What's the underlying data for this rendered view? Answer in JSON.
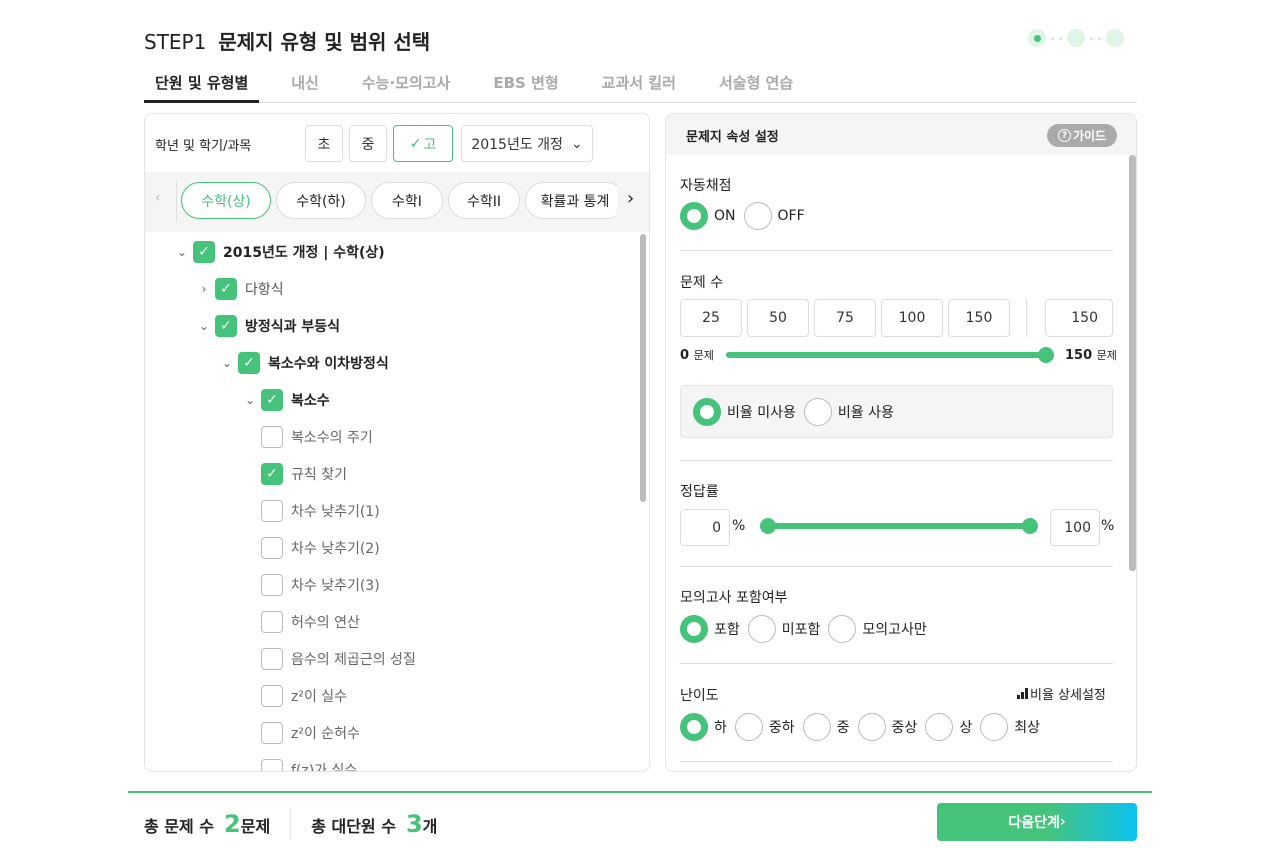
{
  "header": {
    "step": "STEP1",
    "title": "문제지 유형 및 범위 선택"
  },
  "tabs": [
    {
      "label": "단원 및 유형별",
      "active": true
    },
    {
      "label": "내신"
    },
    {
      "label": "수능·모의고사"
    },
    {
      "label": "EBS 변형"
    },
    {
      "label": "교과서 킬러"
    },
    {
      "label": "서술형 연습"
    }
  ],
  "left": {
    "grade_label": "학년 및 학기/과목",
    "grades": [
      {
        "label": "초"
      },
      {
        "label": "중"
      },
      {
        "label": "고",
        "selected": true
      }
    ],
    "curriculum": "2015년도 개정",
    "subjects": [
      {
        "label": "수학(상)",
        "active": true
      },
      {
        "label": "수학(하)"
      },
      {
        "label": "수학I"
      },
      {
        "label": "수학II"
      },
      {
        "label": "확률과 통계"
      }
    ],
    "tree": [
      {
        "label": "2015년도 개정 | 수학(상)",
        "level": 0,
        "checked": true,
        "expanded": true,
        "bold": true
      },
      {
        "label": "다항식",
        "level": 1,
        "checked": true,
        "expanded": false
      },
      {
        "label": "방정식과 부등식",
        "level": 1,
        "checked": true,
        "expanded": true,
        "bold": true
      },
      {
        "label": "복소수와 이차방정식",
        "level": 2,
        "checked": true,
        "expanded": true,
        "bold": true
      },
      {
        "label": "복소수",
        "level": 3,
        "checked": true,
        "expanded": true,
        "bold": true
      },
      {
        "label": "복소수의 주기",
        "level": 4,
        "checked": false
      },
      {
        "label": "규칙 찾기",
        "level": 4,
        "checked": true
      },
      {
        "label": "차수 낮추기(1)",
        "level": 4,
        "checked": false
      },
      {
        "label": "차수 낮추기(2)",
        "level": 4,
        "checked": false
      },
      {
        "label": "차수 낮추기(3)",
        "level": 4,
        "checked": false
      },
      {
        "label": "허수의 연산",
        "level": 4,
        "checked": false
      },
      {
        "label": "음수의 제곱근의 성질",
        "level": 4,
        "checked": false
      },
      {
        "label": "z²이 실수",
        "level": 4,
        "checked": false
      },
      {
        "label": "z²이 순허수",
        "level": 4,
        "checked": false
      },
      {
        "label": "f(z)가 실수",
        "level": 4,
        "checked": false
      }
    ]
  },
  "right": {
    "title": "문제지 속성 설정",
    "guide": "가이드",
    "auto_grade": {
      "label": "자동채점",
      "options": [
        "ON",
        "OFF"
      ],
      "selected": 0
    },
    "count": {
      "label": "문제 수",
      "presets": [
        "25",
        "50",
        "75",
        "100",
        "150"
      ],
      "value": "150",
      "min": "0",
      "max": "150",
      "unit": "문제",
      "slider_percent": 100
    },
    "ratio": {
      "options": [
        "비율 미사용",
        "비율 사용"
      ],
      "selected": 0
    },
    "accuracy": {
      "label": "정답률",
      "min": "0",
      "max": "100",
      "unit": "%"
    },
    "mock": {
      "label": "모의고사 포함여부",
      "options": [
        "포함",
        "미포함",
        "모의고사만"
      ],
      "selected": 0
    },
    "difficulty": {
      "label": "난이도",
      "detail": "비율 상세설정",
      "options": [
        "하",
        "중하",
        "중",
        "중상",
        "상",
        "최상"
      ],
      "selected": 0
    }
  },
  "footer": {
    "total_label": "총 문제 수",
    "total": "2",
    "total_unit": "문제",
    "units_label": "총 대단원 수",
    "units": "3",
    "units_unit": "개",
    "next": "다음단계"
  },
  "colors": {
    "accent": "#46c37b",
    "gradient_end": "#0bc3ef"
  }
}
